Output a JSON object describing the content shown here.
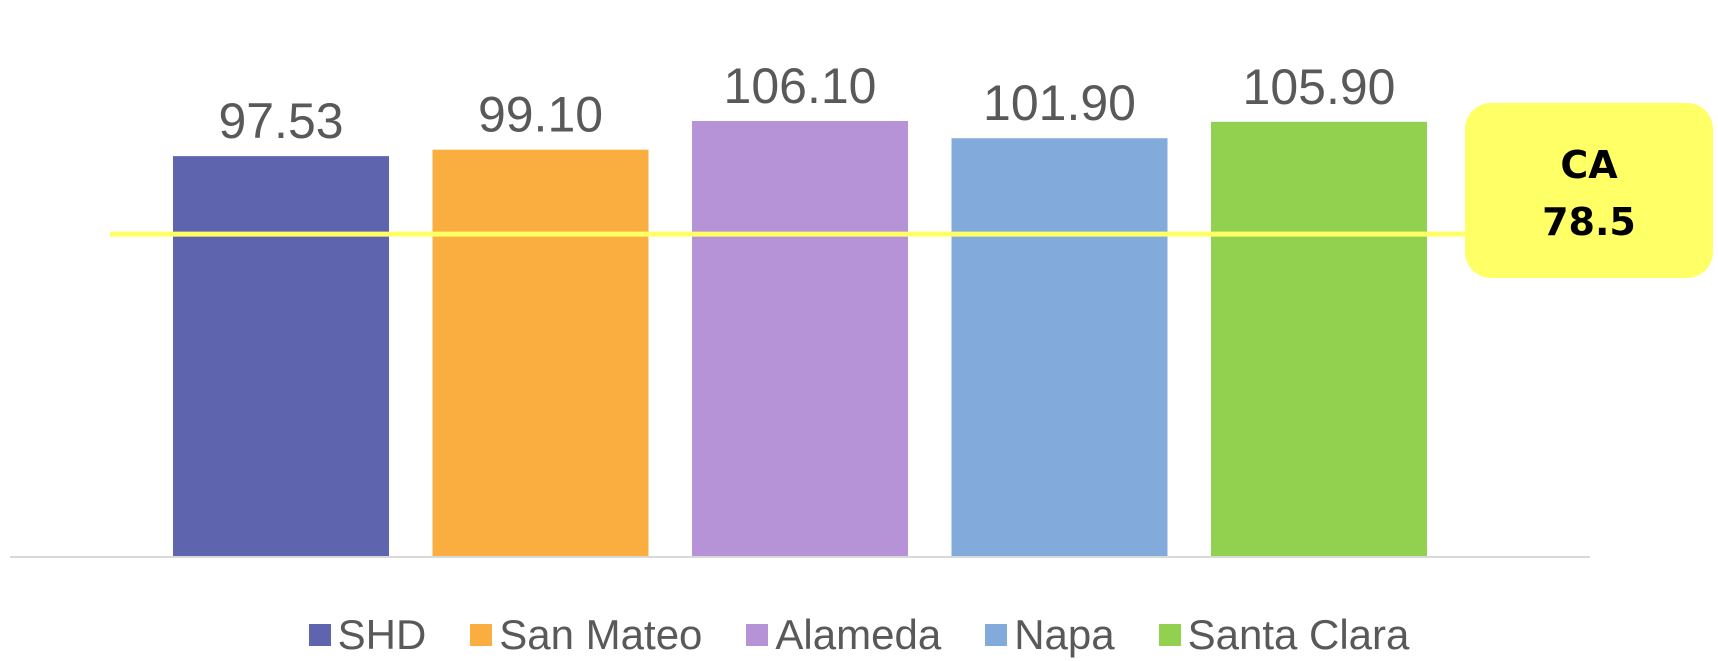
{
  "chart_data": {
    "type": "bar",
    "categories": [
      "SHD",
      "San Mateo",
      "Alameda",
      "Napa",
      "Santa Clara"
    ],
    "values": [
      97.53,
      99.1,
      106.1,
      101.9,
      105.9
    ],
    "value_labels": [
      "97.53",
      "99.10",
      "106.10",
      "101.90",
      "105.90"
    ],
    "colors": [
      "#5E64AE",
      "#F9AE3F",
      "#B692D7",
      "#82ABDC",
      "#92D150"
    ],
    "title": "",
    "xlabel": "",
    "ylabel": "",
    "ylim": [
      0,
      110
    ],
    "grid": false,
    "legend": "bottom",
    "reference_line": {
      "value": 78.5,
      "label_line1": "CA",
      "label_line2": "78.5",
      "color": "#FFFF66"
    },
    "series": [
      {
        "values": [
          97.53,
          99.1,
          106.1,
          101.9,
          105.9
        ]
      }
    ]
  }
}
